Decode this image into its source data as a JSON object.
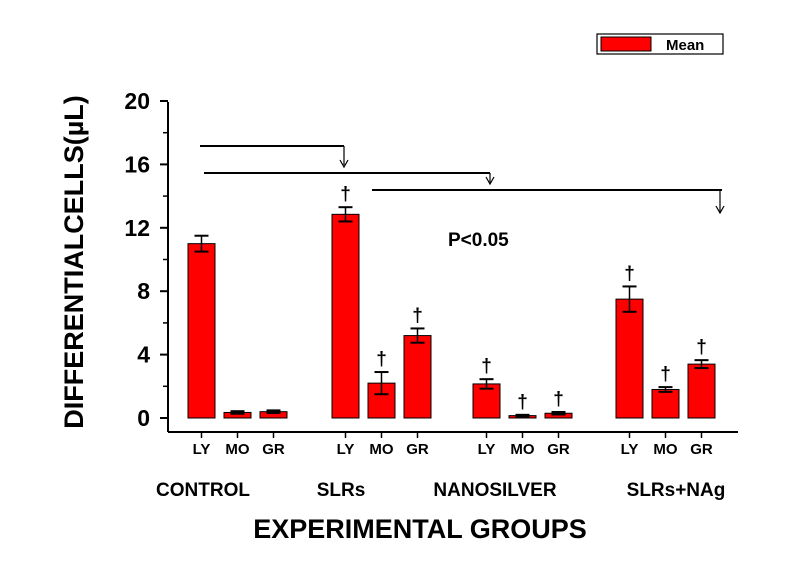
{
  "chart_data": {
    "type": "bar",
    "ylabel": "DIFFERENTIALCELLS(µL)",
    "xlabel": "EXPERIMENTAL GROUPS",
    "ylim": [
      0,
      20
    ],
    "yticks": [
      0,
      4,
      8,
      12,
      16,
      20
    ],
    "legend": {
      "label": "Mean",
      "position": "top-right"
    },
    "annotation": "P<0.05",
    "marker_symbol": "†",
    "bar_color": "#ff0000",
    "groups": [
      {
        "name": "CONTROL",
        "bars": [
          {
            "label": "LY",
            "value": 11.0,
            "error": 0.5,
            "marked": false
          },
          {
            "label": "MO",
            "value": 0.35,
            "error": 0.08,
            "marked": false
          },
          {
            "label": "GR",
            "value": 0.4,
            "error": 0.08,
            "marked": false
          }
        ]
      },
      {
        "name": "SLRs",
        "bars": [
          {
            "label": "LY",
            "value": 12.85,
            "error": 0.45,
            "marked": true
          },
          {
            "label": "MO",
            "value": 2.2,
            "error": 0.7,
            "marked": true
          },
          {
            "label": "GR",
            "value": 5.2,
            "error": 0.45,
            "marked": true
          }
        ]
      },
      {
        "name": "NANOSILVER",
        "bars": [
          {
            "label": "LY",
            "value": 2.15,
            "error": 0.3,
            "marked": true
          },
          {
            "label": "MO",
            "value": 0.15,
            "error": 0.05,
            "marked": true
          },
          {
            "label": "GR",
            "value": 0.3,
            "error": 0.08,
            "marked": true
          }
        ]
      },
      {
        "name": "SLRs+NAg",
        "bars": [
          {
            "label": "LY",
            "value": 7.5,
            "error": 0.8,
            "marked": true
          },
          {
            "label": "MO",
            "value": 1.8,
            "error": 0.15,
            "marked": true
          },
          {
            "label": "GR",
            "value": 3.4,
            "error": 0.25,
            "marked": true
          }
        ]
      }
    ]
  }
}
